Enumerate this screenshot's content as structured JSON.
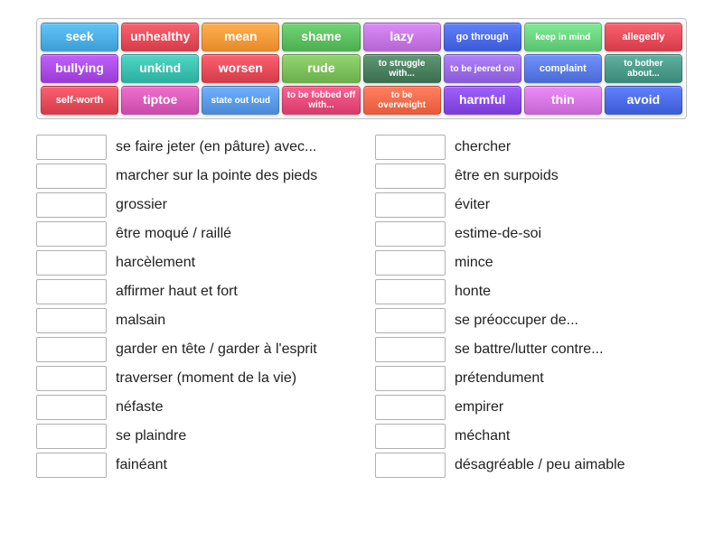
{
  "wordBank": {
    "tiles": [
      {
        "label": "seek",
        "bg": "#3b9fd6",
        "size": "normal"
      },
      {
        "label": "unhealthy",
        "bg": "#d63b4a",
        "size": "normal"
      },
      {
        "label": "mean",
        "bg": "#e88a2a",
        "size": "normal"
      },
      {
        "label": "shame",
        "bg": "#4caf50",
        "size": "normal"
      },
      {
        "label": "lazy",
        "bg": "#b666d2",
        "size": "normal"
      },
      {
        "label": "go through",
        "bg": "#3b5bd6",
        "size": "med"
      },
      {
        "label": "keep in mind",
        "bg": "#5bc470",
        "size": "small"
      },
      {
        "label": "allegedly",
        "bg": "#d63b4a",
        "size": "med"
      },
      {
        "label": "bullying",
        "bg": "#9b3bd6",
        "size": "normal"
      },
      {
        "label": "unkind",
        "bg": "#2bb0a0",
        "size": "normal"
      },
      {
        "label": "worsen",
        "bg": "#d63b4a",
        "size": "normal"
      },
      {
        "label": "rude",
        "bg": "#6bb04a",
        "size": "normal"
      },
      {
        "label": "to struggle with...",
        "bg": "#3a7050",
        "size": "small"
      },
      {
        "label": "to be jeered on",
        "bg": "#8a5bd6",
        "size": "small"
      },
      {
        "label": "complaint",
        "bg": "#4a6bd6",
        "size": "med"
      },
      {
        "label": "to bother about...",
        "bg": "#3a8a7a",
        "size": "small"
      },
      {
        "label": "self-worth",
        "bg": "#d63b4a",
        "size": "med"
      },
      {
        "label": "tiptoe",
        "bg": "#c94aa8",
        "size": "normal"
      },
      {
        "label": "state out loud",
        "bg": "#4a8ad6",
        "size": "small"
      },
      {
        "label": "to be fobbed off with...",
        "bg": "#d63b6b",
        "size": "small"
      },
      {
        "label": "to be overweight",
        "bg": "#e85a3a",
        "size": "small"
      },
      {
        "label": "harmful",
        "bg": "#7a3bd6",
        "size": "normal"
      },
      {
        "label": "thin",
        "bg": "#c666d2",
        "size": "normal"
      },
      {
        "label": "avoid",
        "bg": "#3b5bd6",
        "size": "normal"
      }
    ]
  },
  "answers": {
    "leftColumn": [
      "se faire jeter (en pâture) avec...",
      "marcher sur la pointe des pieds",
      "grossier",
      "être moqué / raillé",
      "harcèlement",
      "affirmer haut et fort",
      "malsain",
      "garder en tête / garder à l'esprit",
      "traverser (moment de la vie)",
      "néfaste",
      "se plaindre",
      "fainéant"
    ],
    "rightColumn": [
      "chercher",
      "être en surpoids",
      "éviter",
      "estime-de-soi",
      "mince",
      "honte",
      "se préoccuper de...",
      "se battre/lutter contre...",
      "prétendument",
      "empirer",
      "méchant",
      "désagréable / peu aimable"
    ]
  },
  "style": {
    "dropBoxBorder": "#b0b0b0",
    "textColor": "#222222",
    "bankBorder": "#c0c0c0",
    "bankBg": "#f9f9f9"
  }
}
